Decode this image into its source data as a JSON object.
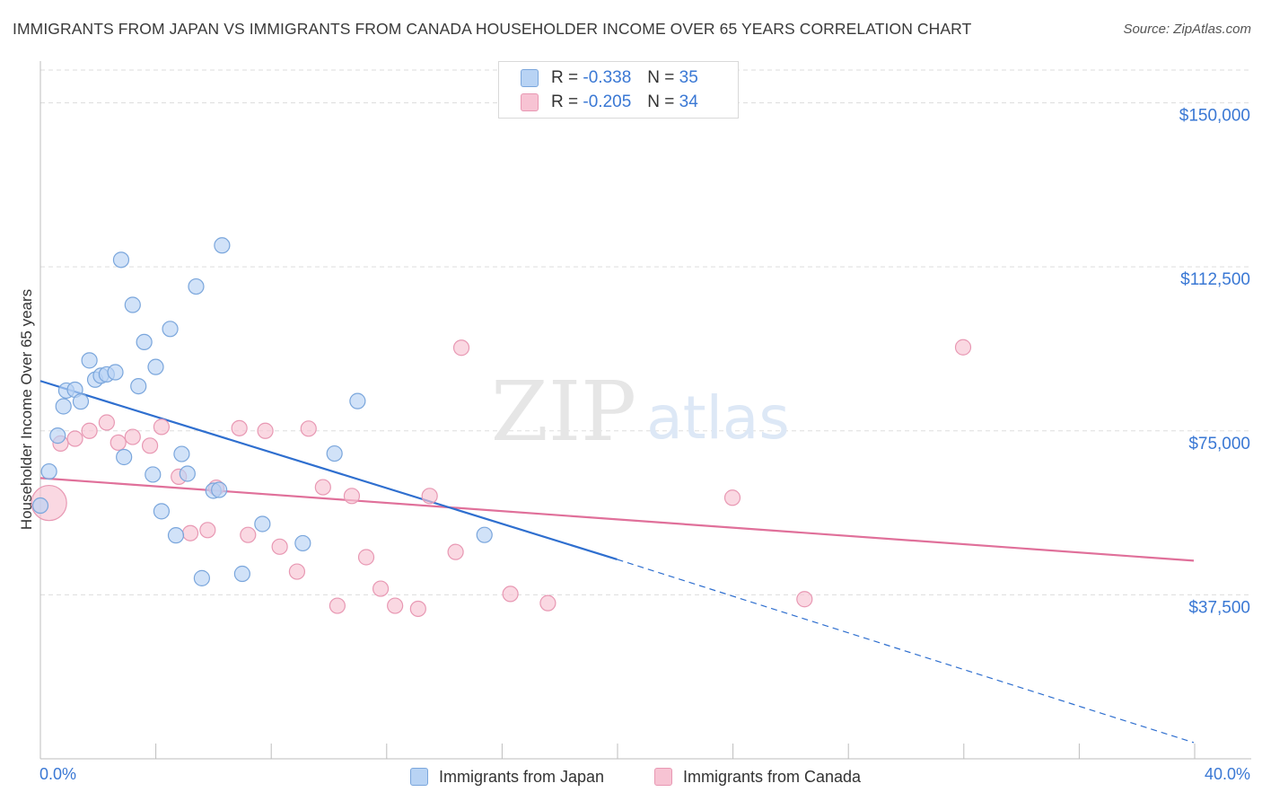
{
  "title": "IMMIGRANTS FROM JAPAN VS IMMIGRANTS FROM CANADA HOUSEHOLDER INCOME OVER 65 YEARS CORRELATION CHART",
  "source": "Source: ZipAtlas.com",
  "watermark": {
    "zip": "ZIP",
    "atlas": "atlas"
  },
  "legend": {
    "japan": {
      "r_label": "R =",
      "r_value": "-0.338",
      "n_label": "N =",
      "n_value": "35"
    },
    "canada": {
      "r_label": "R =",
      "r_value": "-0.205",
      "n_label": "N =",
      "n_value": "34"
    }
  },
  "bottom_legend": {
    "japan": "Immigrants from Japan",
    "canada": "Immigrants from Canada"
  },
  "colors": {
    "japan_fill": "#b8d3f4",
    "japan_stroke": "#7aa6dc",
    "japan_line": "#2f6fcf",
    "canada_fill": "#f7c3d3",
    "canada_stroke": "#e898b3",
    "canada_line": "#e0709a",
    "axis_text": "#3a78d4",
    "grid": "#dddddd"
  },
  "chart_data": {
    "type": "scatter",
    "title": "IMMIGRANTS FROM JAPAN VS IMMIGRANTS FROM CANADA HOUSEHOLDER INCOME OVER 65 YEARS CORRELATION CHART",
    "xlabel": "",
    "ylabel": "Householder Income Over 65 years",
    "xlim": [
      0,
      40
    ],
    "ylim": [
      0,
      157500
    ],
    "x_tick_labels": [
      "0.0%",
      "40.0%"
    ],
    "y_ticks": [
      37500,
      75000,
      112500,
      150000
    ],
    "y_tick_labels": [
      "$37,500",
      "$75,000",
      "$112,500",
      "$150,000"
    ],
    "grid": true,
    "legend_position": "top-center",
    "series": [
      {
        "name": "Immigrants from Japan",
        "color": "#b8d3f4",
        "R": -0.338,
        "N": 35,
        "trend": {
          "x": [
            0,
            20
          ],
          "y": [
            86400,
            45600
          ],
          "dashed_to": [
            40,
            3700
          ]
        },
        "points": [
          [
            0.0,
            57900,
            1
          ],
          [
            0.3,
            65700,
            1
          ],
          [
            0.6,
            73900,
            1
          ],
          [
            0.8,
            80600,
            1
          ],
          [
            0.9,
            84200,
            1
          ],
          [
            1.2,
            84400,
            1
          ],
          [
            1.4,
            81700,
            1
          ],
          [
            1.7,
            91100,
            1
          ],
          [
            1.9,
            86700,
            1
          ],
          [
            2.1,
            87600,
            1
          ],
          [
            2.3,
            87900,
            1
          ],
          [
            2.6,
            88400,
            1
          ],
          [
            2.8,
            114100,
            1
          ],
          [
            2.9,
            69000,
            1
          ],
          [
            3.2,
            103800,
            1
          ],
          [
            3.4,
            85200,
            1
          ],
          [
            3.6,
            95300,
            1
          ],
          [
            3.9,
            65000,
            1
          ],
          [
            4.0,
            89600,
            1
          ],
          [
            4.2,
            56600,
            1
          ],
          [
            4.5,
            98300,
            1
          ],
          [
            4.7,
            51100,
            1
          ],
          [
            4.9,
            69700,
            1
          ],
          [
            5.1,
            65200,
            1
          ],
          [
            5.4,
            108000,
            1
          ],
          [
            5.6,
            41300,
            1
          ],
          [
            6.0,
            61300,
            1
          ],
          [
            6.2,
            61500,
            1
          ],
          [
            6.3,
            117400,
            1
          ],
          [
            7.0,
            42300,
            1
          ],
          [
            7.7,
            53700,
            1
          ],
          [
            9.1,
            49300,
            1
          ],
          [
            10.2,
            69800,
            1
          ],
          [
            11.0,
            81800,
            1
          ],
          [
            15.4,
            51200,
            1
          ]
        ]
      },
      {
        "name": "Immigrants from Canada",
        "color": "#f7c3d3",
        "R": -0.205,
        "N": 34,
        "trend": {
          "x": [
            0,
            40
          ],
          "y": [
            64200,
            45300
          ]
        },
        "points": [
          [
            0.3,
            58500,
            2.3
          ],
          [
            0.7,
            72100,
            1
          ],
          [
            1.2,
            73200,
            1
          ],
          [
            1.7,
            75000,
            1
          ],
          [
            2.3,
            76900,
            1
          ],
          [
            2.7,
            72300,
            1
          ],
          [
            3.2,
            73600,
            1
          ],
          [
            3.8,
            71600,
            1
          ],
          [
            4.2,
            75900,
            1
          ],
          [
            4.8,
            64500,
            1
          ],
          [
            5.2,
            51600,
            1
          ],
          [
            5.8,
            52300,
            1
          ],
          [
            6.1,
            62000,
            1
          ],
          [
            6.9,
            75600,
            1
          ],
          [
            7.2,
            51200,
            1
          ],
          [
            7.8,
            75000,
            1
          ],
          [
            8.3,
            48500,
            1
          ],
          [
            8.9,
            42800,
            1
          ],
          [
            9.3,
            75500,
            1
          ],
          [
            9.8,
            62100,
            1
          ],
          [
            10.3,
            35000,
            1
          ],
          [
            10.8,
            60100,
            1
          ],
          [
            11.3,
            46100,
            1
          ],
          [
            11.8,
            38900,
            1
          ],
          [
            12.3,
            35000,
            1
          ],
          [
            13.1,
            34300,
            1
          ],
          [
            13.5,
            60100,
            1
          ],
          [
            14.4,
            47300,
            1
          ],
          [
            14.6,
            94000,
            1
          ],
          [
            16.3,
            37700,
            1
          ],
          [
            17.6,
            35600,
            1
          ],
          [
            24.0,
            59700,
            1
          ],
          [
            26.5,
            36500,
            1
          ],
          [
            32.0,
            94100,
            1
          ]
        ]
      }
    ]
  }
}
